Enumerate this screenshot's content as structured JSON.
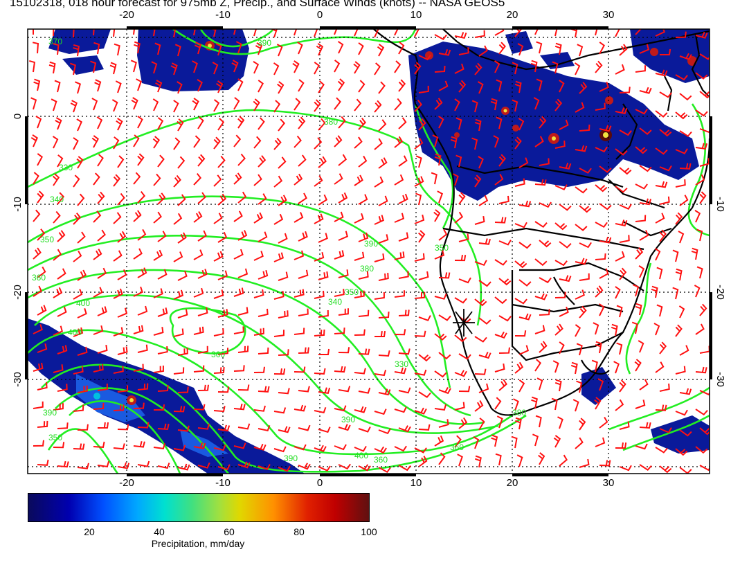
{
  "title": "15102318, 018 hour forecast for 975mb Z, Precip., and Surface Winds (knots) -- NASA GEOS5",
  "map": {
    "lon_ticks": [
      "-20",
      "-10",
      "0",
      "10",
      "20",
      "30"
    ],
    "lat_ticks": [
      "0",
      "-10",
      "-20",
      "-30"
    ],
    "contour_labels": [
      "370",
      "390",
      "380",
      "330",
      "340",
      "350",
      "360",
      "400",
      "400",
      "390",
      "350",
      "360",
      "390",
      "380",
      "350",
      "340",
      "330",
      "390",
      "390",
      "400",
      "360",
      "350",
      "360",
      "380"
    ],
    "colors": {
      "contour": "#22ee22",
      "wind_barb": "#ff0000",
      "coastline": "#000000"
    }
  },
  "colorbar": {
    "ticks": [
      "20",
      "40",
      "60",
      "80",
      "100"
    ],
    "label": "Precipitation, mm/day"
  }
}
